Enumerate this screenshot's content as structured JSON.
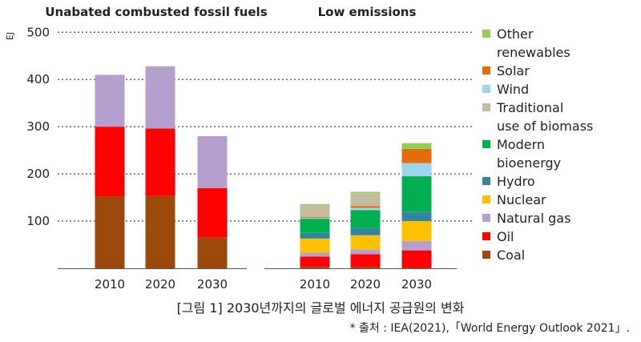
{
  "chart_data": {
    "type": "bar",
    "stacked": true,
    "ylabel": "EJ",
    "ylim": [
      0,
      500
    ],
    "yticks": [
      100,
      200,
      300,
      400,
      500
    ],
    "grid": "horizontal dotted",
    "legend_position": "right",
    "panels": [
      {
        "title": "Unabated combusted fossil fuels",
        "categories": [
          "2010",
          "2020",
          "2030"
        ],
        "series": [
          {
            "name": "Coal",
            "color": "#9c4a0c",
            "values": [
              152,
              153,
              65
            ]
          },
          {
            "name": "Oil",
            "color": "#ff0000",
            "values": [
              148,
              143,
              105
            ]
          },
          {
            "name": "Natural gas",
            "color": "#b49fcf",
            "values": [
              110,
              132,
              110
            ]
          }
        ]
      },
      {
        "title": "Low emissions",
        "categories": [
          "2010",
          "2020",
          "2030"
        ],
        "series": [
          {
            "name": "Coal",
            "color": "#9c4a0c",
            "values": [
              3,
              2,
              1
            ]
          },
          {
            "name": "Oil",
            "color": "#ff0000",
            "values": [
              22,
              28,
              37
            ]
          },
          {
            "name": "Natural gas",
            "color": "#b49fcf",
            "values": [
              8,
              10,
              20
            ]
          },
          {
            "name": "Nuclear",
            "color": "#ffc000",
            "values": [
              30,
              30,
              42
            ]
          },
          {
            "name": "Hydro",
            "color": "#31859c",
            "values": [
              12,
              15,
              20
            ]
          },
          {
            "name": "Modern bioenergy",
            "color": "#00b050",
            "values": [
              30,
              38,
              75
            ]
          },
          {
            "name": "Wind",
            "color": "#9dd6ec",
            "values": [
              2,
              5,
              28
            ]
          },
          {
            "name": "Solar",
            "color": "#e46c0a",
            "values": [
              2,
              4,
              30
            ]
          },
          {
            "name": "Traditional use of biomass",
            "color": "#c4bca0",
            "values": [
              25,
              27,
              0
            ]
          },
          {
            "name": "Other renewables",
            "color": "#92d050",
            "values": [
              2,
              3,
              12
            ]
          }
        ]
      }
    ],
    "legend": [
      {
        "label": [
          "Other",
          "renewables"
        ],
        "color": "#92d050"
      },
      {
        "label": [
          "Solar"
        ],
        "color": "#e46c0a"
      },
      {
        "label": [
          "Wind"
        ],
        "color": "#9dd6ec"
      },
      {
        "label": [
          "Traditional",
          "use of biomass"
        ],
        "color": "#c4bca0"
      },
      {
        "label": [
          "Modern",
          "bioenergy"
        ],
        "color": "#00b050"
      },
      {
        "label": [
          "Hydro"
        ],
        "color": "#31859c"
      },
      {
        "label": [
          "Nuclear"
        ],
        "color": "#ffc000"
      },
      {
        "label": [
          "Natural gas"
        ],
        "color": "#b49fcf"
      },
      {
        "label": [
          "Oil"
        ],
        "color": "#ff0000"
      },
      {
        "label": [
          "Coal"
        ],
        "color": "#9c4a0c"
      }
    ]
  },
  "caption": "[그림 1] 2030년까지의 글로벌 에너지 공급원의 변화",
  "source": "* 출처 : IEA(2021),「World Energy Outlook 2021」."
}
